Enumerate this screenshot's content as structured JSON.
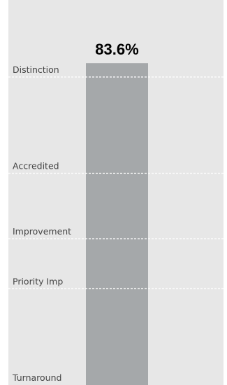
{
  "colors": {
    "background": "#e7e7e7",
    "bar": "#a5a8aa",
    "threshold_line": "#ffffff",
    "label_text": "#444444",
    "value_text": "#000000"
  },
  "chart_data": {
    "type": "bar",
    "categories": [
      ""
    ],
    "values": [
      83.6
    ],
    "value_label": "83.6%",
    "ylim": [
      0,
      100
    ],
    "grid": false,
    "legend": "none",
    "thresholds": [
      {
        "label": "Distinction",
        "value": 80
      },
      {
        "label": "Accredited",
        "value": 55
      },
      {
        "label": "Improvement",
        "value": 38
      },
      {
        "label": "Priority Imp",
        "value": 25
      },
      {
        "label": "Turnaround",
        "value": 0
      }
    ]
  }
}
